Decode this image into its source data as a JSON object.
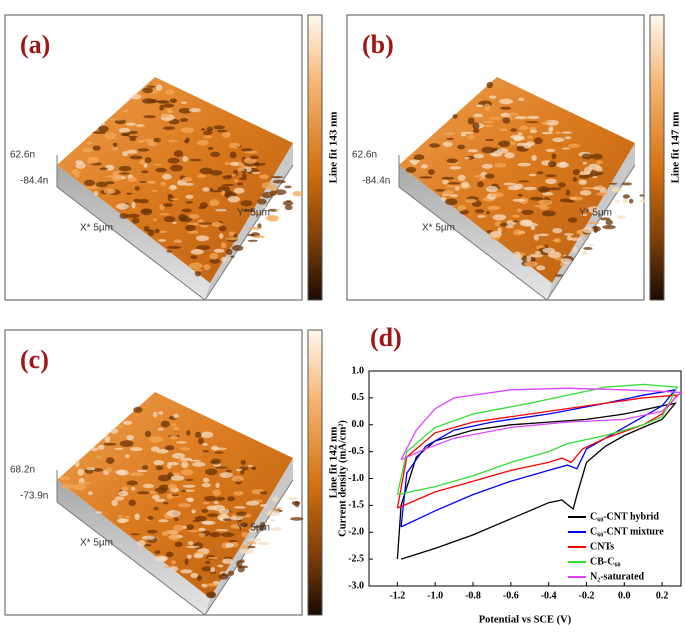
{
  "panels": [
    {
      "label": "(a)",
      "z_max": "62.6n",
      "z_min": "-84.4n",
      "x_axis": "X* 5µm",
      "y_axis": "Y* 5µm",
      "colorbar": "Line fit 143 nm"
    },
    {
      "label": "(b)",
      "z_max": "62.6n",
      "z_min": "-84.4n",
      "x_axis": "X* 5µm",
      "y_axis": "Y* 5µm",
      "colorbar": "Line fit 147 nm"
    },
    {
      "label": "(c)",
      "z_max": "68.2n",
      "z_min": "-73.9n",
      "x_axis": "X* 5µm",
      "y_axis": "Y* 5µm",
      "colorbar": "Line fit 142 nm"
    }
  ],
  "chart_data": {
    "type": "line",
    "panel_label": "(d)",
    "x_label": "Potential vs SCE (V)",
    "y_label": "Current density (mA/cm²)",
    "xlim": [
      -1.35,
      0.3
    ],
    "ylim": [
      -3.0,
      1.0
    ],
    "xticks": [
      -1.2,
      {
        "value": -1.0,
        "label": "-1.0"
      },
      -0.8,
      -0.6,
      -0.4,
      -0.2,
      {
        "value": 0.0,
        "label": "0.0"
      },
      0.2
    ],
    "yticks": [
      {
        "value": 1.0,
        "label": "1.0"
      },
      0.5,
      {
        "value": 0.0,
        "label": "0.0"
      },
      -0.5,
      {
        "value": -1.0,
        "label": "-1.0"
      },
      -1.5,
      {
        "value": -2.0,
        "label": "-2.0"
      },
      -2.5,
      {
        "value": -3.0,
        "label": "-3.0"
      }
    ],
    "legend": "lower right",
    "series": [
      {
        "name": "C₆₀-CNT hybrid",
        "color": "#000000",
        "x": [
          -1.18,
          -1.0,
          -0.8,
          -0.6,
          -0.5,
          -0.4,
          -0.33,
          -0.27,
          -0.25,
          -0.2,
          -0.1,
          0.0,
          0.1,
          0.2,
          0.27,
          0.2,
          0.0,
          -0.2,
          -0.4,
          -0.6,
          -0.8,
          -1.0,
          -1.1,
          -1.18,
          -1.2
        ],
        "values": [
          -2.5,
          -2.3,
          -2.05,
          -1.75,
          -1.6,
          -1.45,
          -1.4,
          -1.57,
          -1.3,
          -0.7,
          -0.4,
          -0.2,
          -0.05,
          0.1,
          0.4,
          0.35,
          0.2,
          0.1,
          0.05,
          0.0,
          -0.1,
          -0.3,
          -0.6,
          -1.5,
          -2.5
        ]
      },
      {
        "name": "C₆₀-CNT mixture",
        "color": "#0000ff",
        "x": [
          -1.18,
          -1.0,
          -0.8,
          -0.6,
          -0.4,
          -0.3,
          -0.25,
          -0.2,
          -0.1,
          0.0,
          0.1,
          0.2,
          0.27,
          0.1,
          -0.1,
          -0.4,
          -0.7,
          -0.9,
          -1.05,
          -1.15,
          -1.18
        ],
        "values": [
          -1.9,
          -1.6,
          -1.3,
          -1.05,
          -0.85,
          -0.75,
          -0.82,
          -0.45,
          -0.25,
          -0.05,
          0.15,
          0.35,
          0.65,
          0.55,
          0.4,
          0.2,
          0.05,
          -0.1,
          -0.4,
          -0.9,
          -1.9
        ]
      },
      {
        "name": "CNTs",
        "color": "#ff0000",
        "x": [
          -1.2,
          -1.0,
          -0.8,
          -0.6,
          -0.4,
          -0.33,
          -0.28,
          -0.22,
          -0.1,
          0.1,
          0.2,
          0.28,
          0.1,
          -0.2,
          -0.5,
          -0.8,
          -1.0,
          -1.15,
          -1.2
        ],
        "values": [
          -1.55,
          -1.25,
          -1.05,
          -0.85,
          -0.7,
          -0.62,
          -0.7,
          -0.45,
          -0.25,
          0.0,
          0.2,
          0.55,
          0.5,
          0.35,
          0.2,
          0.05,
          -0.15,
          -0.6,
          -1.55
        ]
      },
      {
        "name": "CB-C₆₀",
        "color": "#33dd33",
        "x": [
          -1.2,
          -1.0,
          -0.8,
          -0.6,
          -0.4,
          -0.3,
          -0.1,
          0.1,
          0.2,
          0.28,
          0.1,
          -0.1,
          -0.3,
          -0.5,
          -0.8,
          -1.0,
          -1.15,
          -1.2
        ],
        "values": [
          -1.3,
          -1.15,
          -0.95,
          -0.7,
          -0.5,
          -0.35,
          -0.2,
          0.0,
          0.15,
          0.7,
          0.75,
          0.7,
          0.55,
          0.4,
          0.2,
          -0.05,
          -0.5,
          -1.3
        ]
      },
      {
        "name": "N₂-saturated",
        "color": "#dd44ff",
        "x": [
          -1.18,
          -1.05,
          -0.9,
          -0.6,
          -0.3,
          0.0,
          0.2,
          0.3,
          0.2,
          0.0,
          -0.3,
          -0.6,
          -0.9,
          -1.0,
          -1.1,
          -1.18
        ],
        "values": [
          -0.65,
          -0.45,
          -0.25,
          -0.05,
          0.05,
          0.1,
          0.25,
          0.6,
          0.62,
          0.65,
          0.68,
          0.65,
          0.5,
          0.3,
          -0.1,
          -0.65
        ]
      }
    ]
  }
}
